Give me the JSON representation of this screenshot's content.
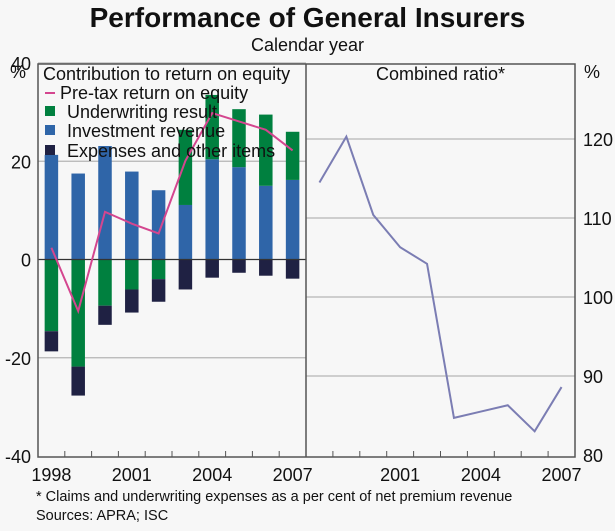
{
  "title": "Performance of General Insurers",
  "subtitle": "Calendar year",
  "footnote": "*   Claims and underwriting expenses as a per cent of net premium revenue",
  "sources": "Sources: APRA; ISC",
  "colors": {
    "underwriting": "#00803f",
    "investment": "#2f65a8",
    "expenses": "#1f2143",
    "roe_line": "#d4468f",
    "combined_line": "#7b7db3",
    "grid": "#b5b5b5",
    "axis": "#555555"
  },
  "chart_data": [
    {
      "type": "bar",
      "stacked": true,
      "panel": "left",
      "title": "Contribution to return on equity",
      "ylabel": "%",
      "ylim": [
        -40,
        40
      ],
      "yticks": [
        40,
        20,
        0,
        -20,
        -40
      ],
      "categories": [
        "1998",
        "1999",
        "2000",
        "2001",
        "2002",
        "2003",
        "2004",
        "2005",
        "2006",
        "2007"
      ],
      "xtick_labels": [
        "1998",
        "2001",
        "2004",
        "2007"
      ],
      "grid": true,
      "legend_position": "top-left",
      "series": [
        {
          "name": "Investment revenue",
          "key": "investment",
          "kind": "bar",
          "values": [
            21.3,
            17.5,
            23.1,
            17.9,
            14.1,
            11.1,
            20.4,
            18.8,
            15.0,
            16.2
          ]
        },
        {
          "name": "Underwriting result",
          "key": "underwriting",
          "kind": "bar",
          "values": [
            -14.6,
            -21.8,
            -9.4,
            -6.1,
            -4.0,
            15.3,
            13.1,
            11.8,
            14.5,
            9.8
          ]
        },
        {
          "name": "Expenses and other items",
          "key": "expenses",
          "kind": "bar",
          "values": [
            -4.1,
            -5.9,
            -3.9,
            -4.7,
            -4.6,
            -6.1,
            -3.7,
            -2.7,
            -3.3,
            -3.9
          ]
        },
        {
          "name": "Pre-tax return on equity",
          "key": "roe_line",
          "kind": "line",
          "values": [
            2.4,
            -10.5,
            9.7,
            7.3,
            5.3,
            20.1,
            29.8,
            28.1,
            26.4,
            22.2
          ]
        }
      ],
      "legend": [
        {
          "label": "Pre-tax return on equity",
          "key": "roe_line",
          "marker": "line"
        },
        {
          "label": "Underwriting result",
          "key": "underwriting",
          "marker": "square"
        },
        {
          "label": "Investment revenue",
          "key": "investment",
          "marker": "square"
        },
        {
          "label": "Expenses and other items",
          "key": "expenses",
          "marker": "square"
        }
      ]
    },
    {
      "type": "line",
      "panel": "right",
      "title": "Combined ratio*",
      "ylabel": "%",
      "ylim": [
        80,
        125
      ],
      "yticks": [
        120,
        110,
        100,
        90,
        80
      ],
      "categories": [
        "1998",
        "1999",
        "2000",
        "2001",
        "2002",
        "2003",
        "2004",
        "2005",
        "2006",
        "2007"
      ],
      "xtick_labels": [
        "2001",
        "2004",
        "2007"
      ],
      "grid": true,
      "series": [
        {
          "name": "Combined ratio",
          "key": "combined_line",
          "values": [
            114.5,
            120.3,
            110.4,
            106.3,
            104.2,
            84.7,
            85.5,
            86.3,
            83.0,
            88.6
          ]
        }
      ]
    }
  ]
}
